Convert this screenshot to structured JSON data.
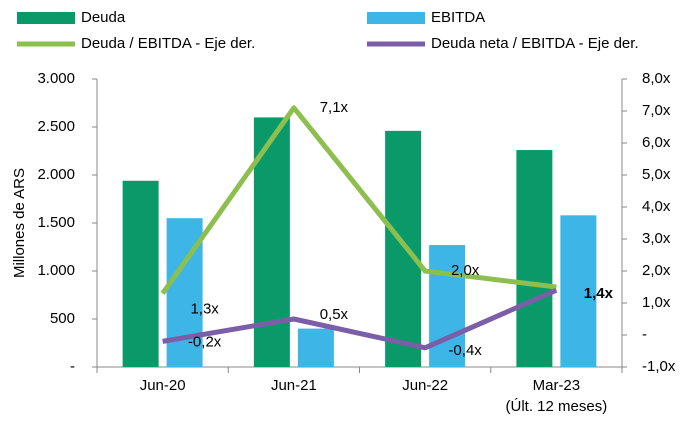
{
  "chart_data": {
    "type": "bar",
    "categories": [
      "Jun-20",
      "Jun-21",
      "Jun-22",
      "Mar-23\n(Últ. 12 meses)"
    ],
    "series": [
      {
        "name": "Deuda",
        "color": "#0a9a6a",
        "values": [
          1940,
          2600,
          2460,
          2260
        ]
      },
      {
        "name": "EBITDA",
        "color": "#3db5e7",
        "values": [
          1550,
          400,
          1270,
          1580
        ]
      },
      {
        "name": "Deuda / EBITDA - Eje der.",
        "type": "line",
        "axis": "y2",
        "color": "#8dbf4f",
        "values": [
          1.3,
          7.1,
          2.0,
          1.5
        ],
        "value_labels": [
          "1,3x",
          "7,1x",
          "2,0x",
          null
        ]
      },
      {
        "name": "Deuda neta / EBITDA - Eje der.",
        "type": "line",
        "axis": "y2",
        "color": "#7c5ea8",
        "values": [
          -0.2,
          0.5,
          -0.4,
          1.4
        ],
        "value_labels": [
          "-0,2x",
          "0,5x",
          "-0,4x",
          "1,4x"
        ]
      }
    ],
    "ylabel": "Millones de ARS",
    "ylim": [
      0,
      3000
    ],
    "yticks": [
      {
        "value": 0,
        "label": "-"
      },
      500,
      {
        "value": 1000,
        "label": "1.000"
      },
      {
        "value": 1500,
        "label": "1.500"
      },
      {
        "value": 2000,
        "label": "2.000"
      },
      {
        "value": 2500,
        "label": "2.500"
      },
      {
        "value": 3000,
        "label": "3.000"
      }
    ],
    "y2lim": [
      -1,
      8
    ],
    "y2ticks": [
      {
        "value": -1,
        "label": "-1,0x"
      },
      {
        "value": 0,
        "label": "-"
      },
      {
        "value": 1,
        "label": "1,0x"
      },
      {
        "value": 2,
        "label": "2,0x"
      },
      {
        "value": 3,
        "label": "3,0x"
      },
      {
        "value": 4,
        "label": "4,0x"
      },
      {
        "value": 5,
        "label": "5,0x"
      },
      {
        "value": 6,
        "label": "6,0x"
      },
      {
        "value": 7,
        "label": "7,0x"
      },
      {
        "value": 8,
        "label": "8,0x"
      }
    ],
    "legend": "top"
  }
}
